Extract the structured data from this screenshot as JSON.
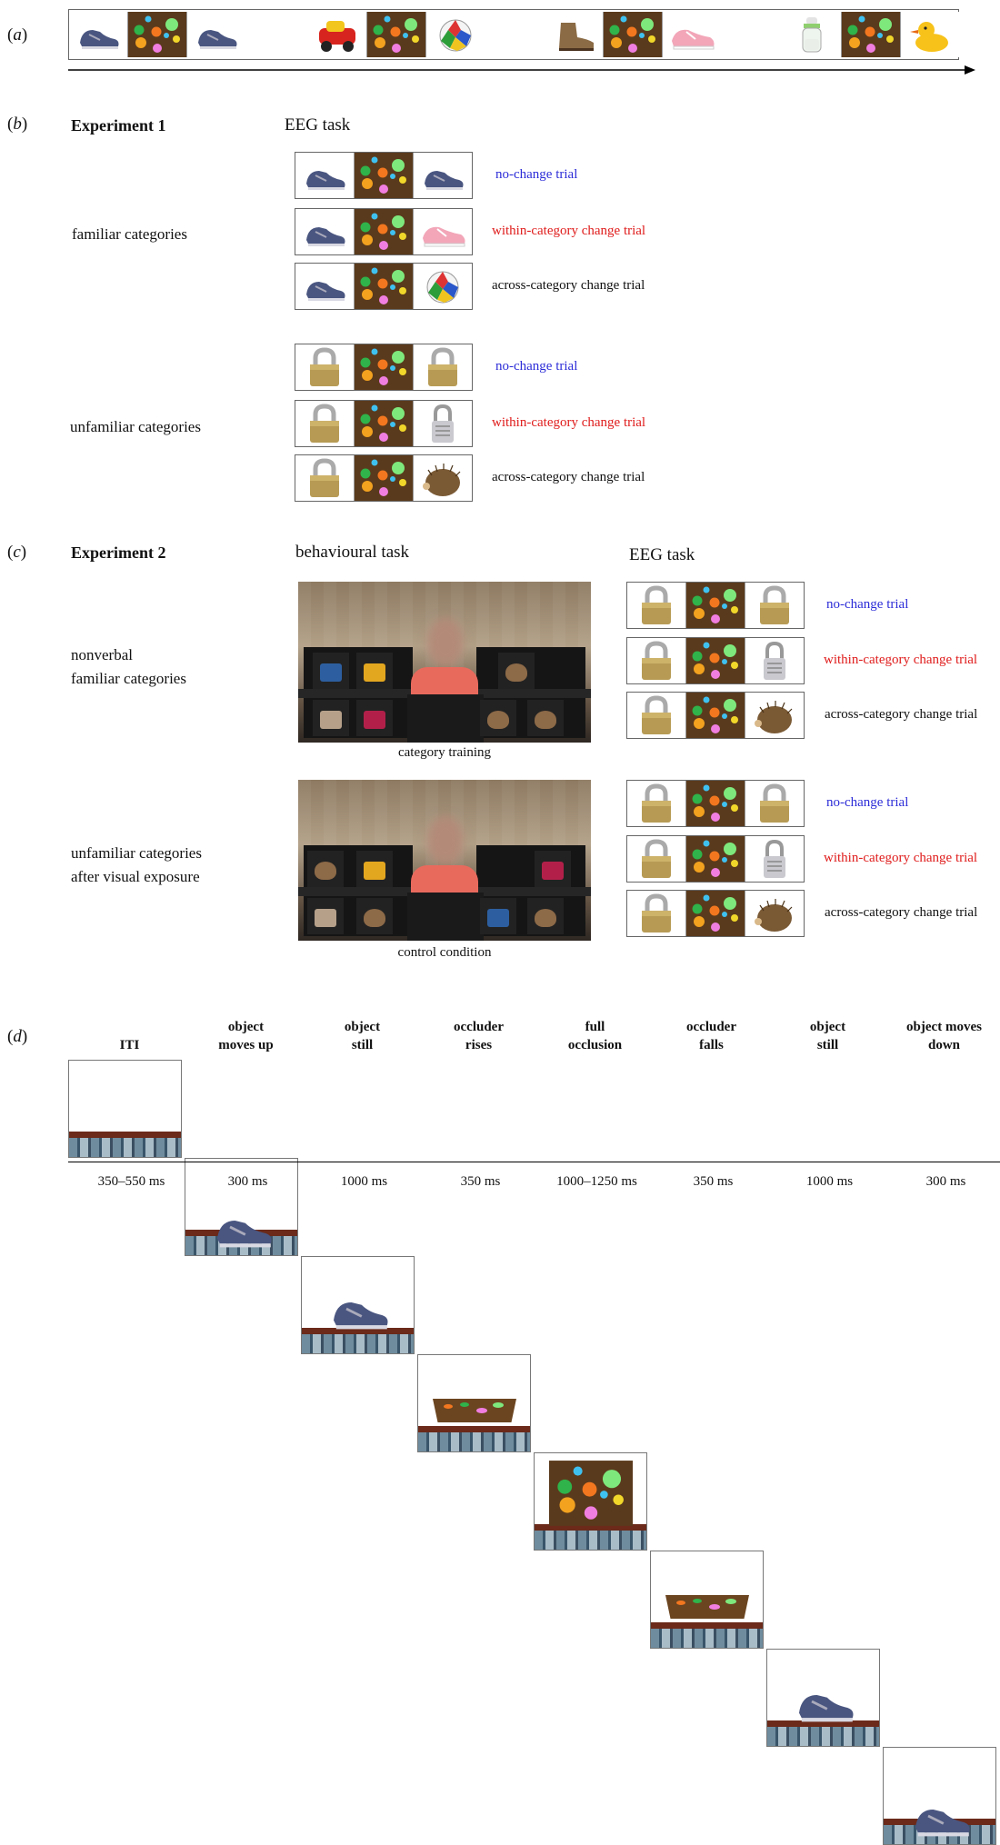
{
  "panels": {
    "a": "a",
    "b": "b",
    "c": "c",
    "d": "d"
  },
  "colors": {
    "no_change": "#2c2cd8",
    "within": "#e01c1c",
    "across": "#111111",
    "occluder": "#5a3a1c"
  },
  "panel_a": {
    "sequences": [
      [
        "shoe-icon",
        "occluder-icon",
        "shoe-icon"
      ],
      [
        "toy-car-icon",
        "occluder-icon",
        "ball-icon"
      ],
      [
        "boot-icon",
        "occluder-icon",
        "sneaker-icon"
      ],
      [
        "bottle-icon",
        "occluder-icon",
        "duck-icon"
      ]
    ]
  },
  "experiment1": {
    "title": "Experiment 1",
    "task": "EEG task",
    "groups": [
      {
        "label": "familiar categories",
        "trials": [
          {
            "first": "shoe-icon",
            "last": "shoe-icon",
            "label": "no-change trial",
            "kind": "no_change"
          },
          {
            "first": "shoe-icon",
            "last": "sneaker-icon",
            "label": "within-category change trial",
            "kind": "within"
          },
          {
            "first": "shoe-icon",
            "last": "ball-icon",
            "label": "across-category change trial",
            "kind": "across"
          }
        ]
      },
      {
        "label": "unfamiliar categories",
        "trials": [
          {
            "first": "padlock-icon",
            "last": "padlock-icon",
            "label": "no-change trial",
            "kind": "no_change"
          },
          {
            "first": "padlock-icon",
            "last": "combination-lock-icon",
            "label": "within-category change trial",
            "kind": "within"
          },
          {
            "first": "padlock-icon",
            "last": "hedgehog-icon",
            "label": "across-category change trial",
            "kind": "across"
          }
        ]
      }
    ]
  },
  "experiment2": {
    "title": "Experiment 2",
    "behavioural_task": "behavioural task",
    "eeg_task": "EEG task",
    "groups": [
      {
        "label_lines": [
          "nonverbal",
          "familiar categories"
        ],
        "photo_caption": "category training",
        "trials": [
          {
            "first": "padlock-icon",
            "last": "padlock-icon",
            "label": "no-change trial",
            "kind": "no_change"
          },
          {
            "first": "padlock-icon",
            "last": "combination-lock-icon",
            "label": "within-category change trial",
            "kind": "within"
          },
          {
            "first": "padlock-icon",
            "last": "hedgehog-icon",
            "label": "across-category change trial",
            "kind": "across"
          }
        ]
      },
      {
        "label_lines": [
          "unfamiliar categories",
          "after visual exposure"
        ],
        "photo_caption": "control condition",
        "trials": [
          {
            "first": "padlock-icon",
            "last": "padlock-icon",
            "label": "no-change trial",
            "kind": "no_change"
          },
          {
            "first": "padlock-icon",
            "last": "combination-lock-icon",
            "label": "within-category change trial",
            "kind": "within"
          },
          {
            "first": "padlock-icon",
            "last": "hedgehog-icon",
            "label": "across-category change trial",
            "kind": "across"
          }
        ]
      }
    ]
  },
  "panel_d": {
    "phases": [
      {
        "label": [
          "",
          "ITI"
        ],
        "duration": "350–550 ms",
        "state": "empty"
      },
      {
        "label": [
          "object",
          "moves up"
        ],
        "duration": "300 ms",
        "state": "object-low"
      },
      {
        "label": [
          "object",
          "still"
        ],
        "duration": "1000 ms",
        "state": "object-up"
      },
      {
        "label": [
          "occluder",
          "rises"
        ],
        "duration": "350 ms",
        "state": "occluder-low"
      },
      {
        "label": [
          "full",
          "occlusion"
        ],
        "duration": "1000–1250 ms",
        "state": "occluder-full"
      },
      {
        "label": [
          "occluder",
          "falls"
        ],
        "duration": "350 ms",
        "state": "occluder-low"
      },
      {
        "label": [
          "object",
          "still"
        ],
        "duration": "1000 ms",
        "state": "object-up"
      },
      {
        "label": [
          "object moves",
          "down"
        ],
        "duration": "300 ms",
        "state": "object-low"
      }
    ]
  }
}
